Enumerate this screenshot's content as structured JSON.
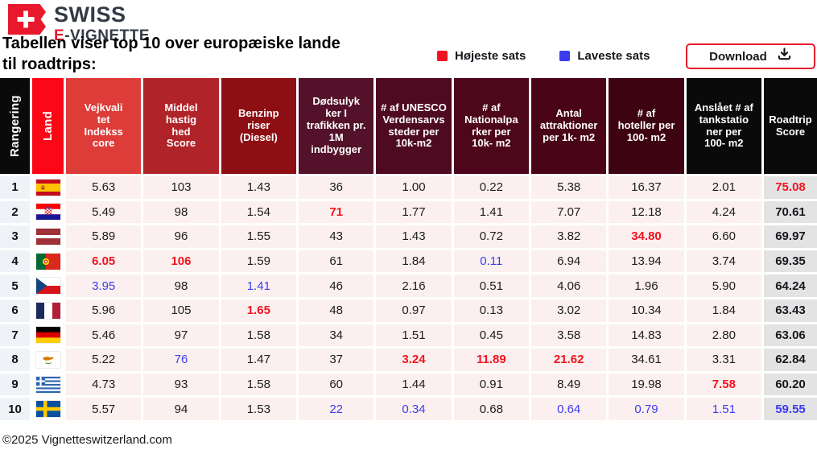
{
  "logo": {
    "brand_top": "SWISS",
    "brand_e": "E",
    "brand_rest": "-VIGNETTE"
  },
  "title": "Tabellen viser top 10 over europæiske lande\ntil roadtrips:",
  "legend": {
    "high": {
      "label": "Højeste sats",
      "color": "#F3121F"
    },
    "low": {
      "label": "Laveste sats",
      "color": "#3B3BF2"
    }
  },
  "download": {
    "label": "Download",
    "icon": "download-icon"
  },
  "colors": {
    "accent_red": "#E8192C",
    "highlight_high": "#F3121F",
    "highlight_low": "#3B3BF2",
    "cell_pink": "#FBF0EF",
    "rank_bg": "#EFF3F8",
    "score_bg": "#E3E3E4"
  },
  "table": {
    "columns": [
      {
        "label": "Rangering",
        "bg": "#0A0A0A",
        "vertical": true
      },
      {
        "label": "Land",
        "bg": "#FB0716",
        "vertical": true
      },
      {
        "label": "Vejkvali\ntet\nIndekss\ncore",
        "bg": "#DD3C39",
        "vertical": false
      },
      {
        "label": "Middel\nhastig\nhed\nScore",
        "bg": "#B02329",
        "vertical": false
      },
      {
        "label": "Benzinp\nriser\n(Diesel)",
        "bg": "#8E0F13",
        "vertical": false
      },
      {
        "label": "Dødsulyk\nker I\ntrafikken pr.\n1M\nindbygger",
        "bg": "#54122A",
        "vertical": false
      },
      {
        "label": "# af UNESCO\nVerdensarvs\nsteder per\n10k-m2",
        "bg": "#4E0A20",
        "vertical": false
      },
      {
        "label": "# af\nNationalpa\nrker per\n10k- m2",
        "bg": "#4D061B",
        "vertical": false
      },
      {
        "label": "Antal\nattraktioner\nper 1k- m2",
        "bg": "#4A0417",
        "vertical": false
      },
      {
        "label": "# af\nhoteller per\n100- m2",
        "bg": "#3D0311",
        "vertical": false
      },
      {
        "label": "Anslået # af\ntankstatio\nner per\n100- m2",
        "bg": "#0A0A0A",
        "vertical": false
      },
      {
        "label": "Roadtrip\nScore",
        "bg": "#0A0A0A",
        "vertical": false
      }
    ],
    "rows": [
      {
        "rank": "1",
        "country": "spain",
        "cells": [
          {
            "v": "5.63"
          },
          {
            "v": "103"
          },
          {
            "v": "1.43"
          },
          {
            "v": "36"
          },
          {
            "v": "1.00"
          },
          {
            "v": "0.22"
          },
          {
            "v": "5.38"
          },
          {
            "v": "16.37"
          },
          {
            "v": "2.01"
          }
        ],
        "score": {
          "v": "75.08",
          "hl": "h"
        }
      },
      {
        "rank": "2",
        "country": "croatia",
        "cells": [
          {
            "v": "5.49"
          },
          {
            "v": "98"
          },
          {
            "v": "1.54"
          },
          {
            "v": "71",
            "hl": "h"
          },
          {
            "v": "1.77"
          },
          {
            "v": "1.41"
          },
          {
            "v": "7.07"
          },
          {
            "v": "12.18"
          },
          {
            "v": "4.24"
          }
        ],
        "score": {
          "v": "70.61"
        }
      },
      {
        "rank": "3",
        "country": "latvia",
        "cells": [
          {
            "v": "5.89"
          },
          {
            "v": "96"
          },
          {
            "v": "1.55"
          },
          {
            "v": "43"
          },
          {
            "v": "1.43"
          },
          {
            "v": "0.72"
          },
          {
            "v": "3.82"
          },
          {
            "v": "34.80",
            "hl": "h"
          },
          {
            "v": "6.60"
          }
        ],
        "score": {
          "v": "69.97"
        }
      },
      {
        "rank": "4",
        "country": "portugal",
        "cells": [
          {
            "v": "6.05",
            "hl": "h"
          },
          {
            "v": "106",
            "hl": "h"
          },
          {
            "v": "1.59"
          },
          {
            "v": "61"
          },
          {
            "v": "1.84"
          },
          {
            "v": "0.11",
            "hl": "l"
          },
          {
            "v": "6.94"
          },
          {
            "v": "13.94"
          },
          {
            "v": "3.74"
          }
        ],
        "score": {
          "v": "69.35"
        }
      },
      {
        "rank": "5",
        "country": "czechia",
        "cells": [
          {
            "v": "3.95",
            "hl": "l"
          },
          {
            "v": "98"
          },
          {
            "v": "1.41",
            "hl": "l"
          },
          {
            "v": "46"
          },
          {
            "v": "2.16"
          },
          {
            "v": "0.51"
          },
          {
            "v": "4.06"
          },
          {
            "v": "1.96"
          },
          {
            "v": "5.90"
          }
        ],
        "score": {
          "v": "64.24"
        }
      },
      {
        "rank": "6",
        "country": "france",
        "cells": [
          {
            "v": "5.96"
          },
          {
            "v": "105"
          },
          {
            "v": "1.65",
            "hl": "h"
          },
          {
            "v": "48"
          },
          {
            "v": "0.97"
          },
          {
            "v": "0.13"
          },
          {
            "v": "3.02"
          },
          {
            "v": "10.34"
          },
          {
            "v": "1.84"
          }
        ],
        "score": {
          "v": "63.43"
        }
      },
      {
        "rank": "7",
        "country": "germany",
        "cells": [
          {
            "v": "5.46"
          },
          {
            "v": "97"
          },
          {
            "v": "1.58"
          },
          {
            "v": "34"
          },
          {
            "v": "1.51"
          },
          {
            "v": "0.45"
          },
          {
            "v": "3.58"
          },
          {
            "v": "14.83"
          },
          {
            "v": "2.80"
          }
        ],
        "score": {
          "v": "63.06"
        }
      },
      {
        "rank": "8",
        "country": "cyprus",
        "cells": [
          {
            "v": "5.22"
          },
          {
            "v": "76",
            "hl": "l"
          },
          {
            "v": "1.47"
          },
          {
            "v": "37"
          },
          {
            "v": "3.24",
            "hl": "h"
          },
          {
            "v": "11.89",
            "hl": "h"
          },
          {
            "v": "21.62",
            "hl": "h"
          },
          {
            "v": "34.61"
          },
          {
            "v": "3.31"
          }
        ],
        "score": {
          "v": "62.84"
        }
      },
      {
        "rank": "9",
        "country": "greece",
        "cells": [
          {
            "v": "4.73"
          },
          {
            "v": "93"
          },
          {
            "v": "1.58"
          },
          {
            "v": "60"
          },
          {
            "v": "1.44"
          },
          {
            "v": "0.91"
          },
          {
            "v": "8.49"
          },
          {
            "v": "19.98"
          },
          {
            "v": "7.58",
            "hl": "h"
          }
        ],
        "score": {
          "v": "60.20"
        }
      },
      {
        "rank": "10",
        "country": "sweden",
        "cells": [
          {
            "v": "5.57"
          },
          {
            "v": "94"
          },
          {
            "v": "1.53"
          },
          {
            "v": "22",
            "hl": "l"
          },
          {
            "v": "0.34",
            "hl": "l"
          },
          {
            "v": "0.68"
          },
          {
            "v": "0.64",
            "hl": "l"
          },
          {
            "v": "0.79",
            "hl": "l"
          },
          {
            "v": "1.51",
            "hl": "l"
          }
        ],
        "score": {
          "v": "59.55",
          "hl": "l"
        }
      }
    ]
  },
  "footer": "©2025 Vignetteswitzerland.com"
}
